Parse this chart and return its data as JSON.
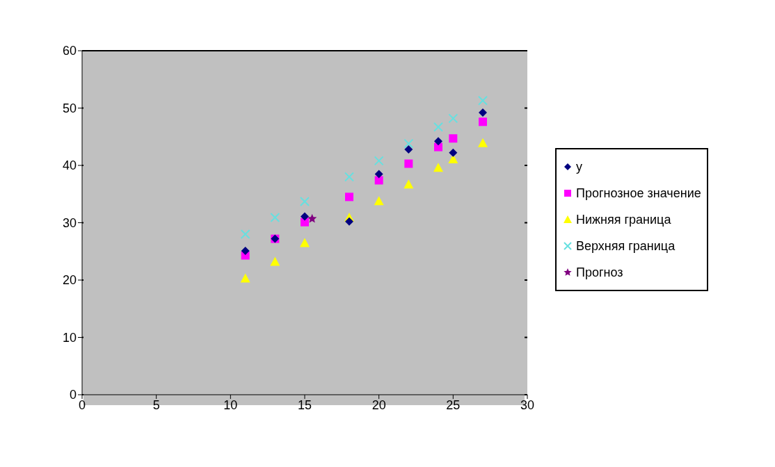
{
  "chart_data": {
    "type": "scatter",
    "legend": "right",
    "grid": "y",
    "xlim": [
      0,
      30
    ],
    "xticks": [
      0,
      5,
      10,
      15,
      20,
      25,
      30
    ],
    "ylim": [
      0,
      60
    ],
    "yticks": [
      0,
      10,
      20,
      30,
      40,
      50,
      60
    ],
    "x": [
      11,
      13,
      15,
      18,
      20,
      22,
      24,
      25,
      27
    ],
    "series": [
      {
        "name": "y",
        "color": "#000080",
        "marker": "diamond",
        "values": [
          25.1,
          27.2,
          31.1,
          30.2,
          38.5,
          42.8,
          44.2,
          42.2,
          49.2
        ]
      },
      {
        "name": "Прогнозное значение",
        "color": "#ff00ff",
        "marker": "square",
        "values": [
          24.3,
          27.2,
          30.1,
          34.5,
          37.4,
          40.3,
          43.2,
          44.7,
          47.6
        ]
      },
      {
        "name": "Нижняя граница",
        "color": "#ffff00",
        "marker": "triangle",
        "values": [
          20.3,
          23.2,
          26.5,
          30.9,
          33.8,
          36.7,
          39.6,
          41.1,
          43.9
        ]
      },
      {
        "name": "Верхняя граница",
        "color": "#66e0e0",
        "marker": "cross",
        "values": [
          28.0,
          30.9,
          33.7,
          38.0,
          40.8,
          43.8,
          46.7,
          48.2,
          51.3
        ]
      },
      {
        "name": "Прогноз",
        "color": "#800080",
        "marker": "star",
        "x": [
          15.5
        ],
        "values": [
          30.7
        ]
      }
    ]
  }
}
